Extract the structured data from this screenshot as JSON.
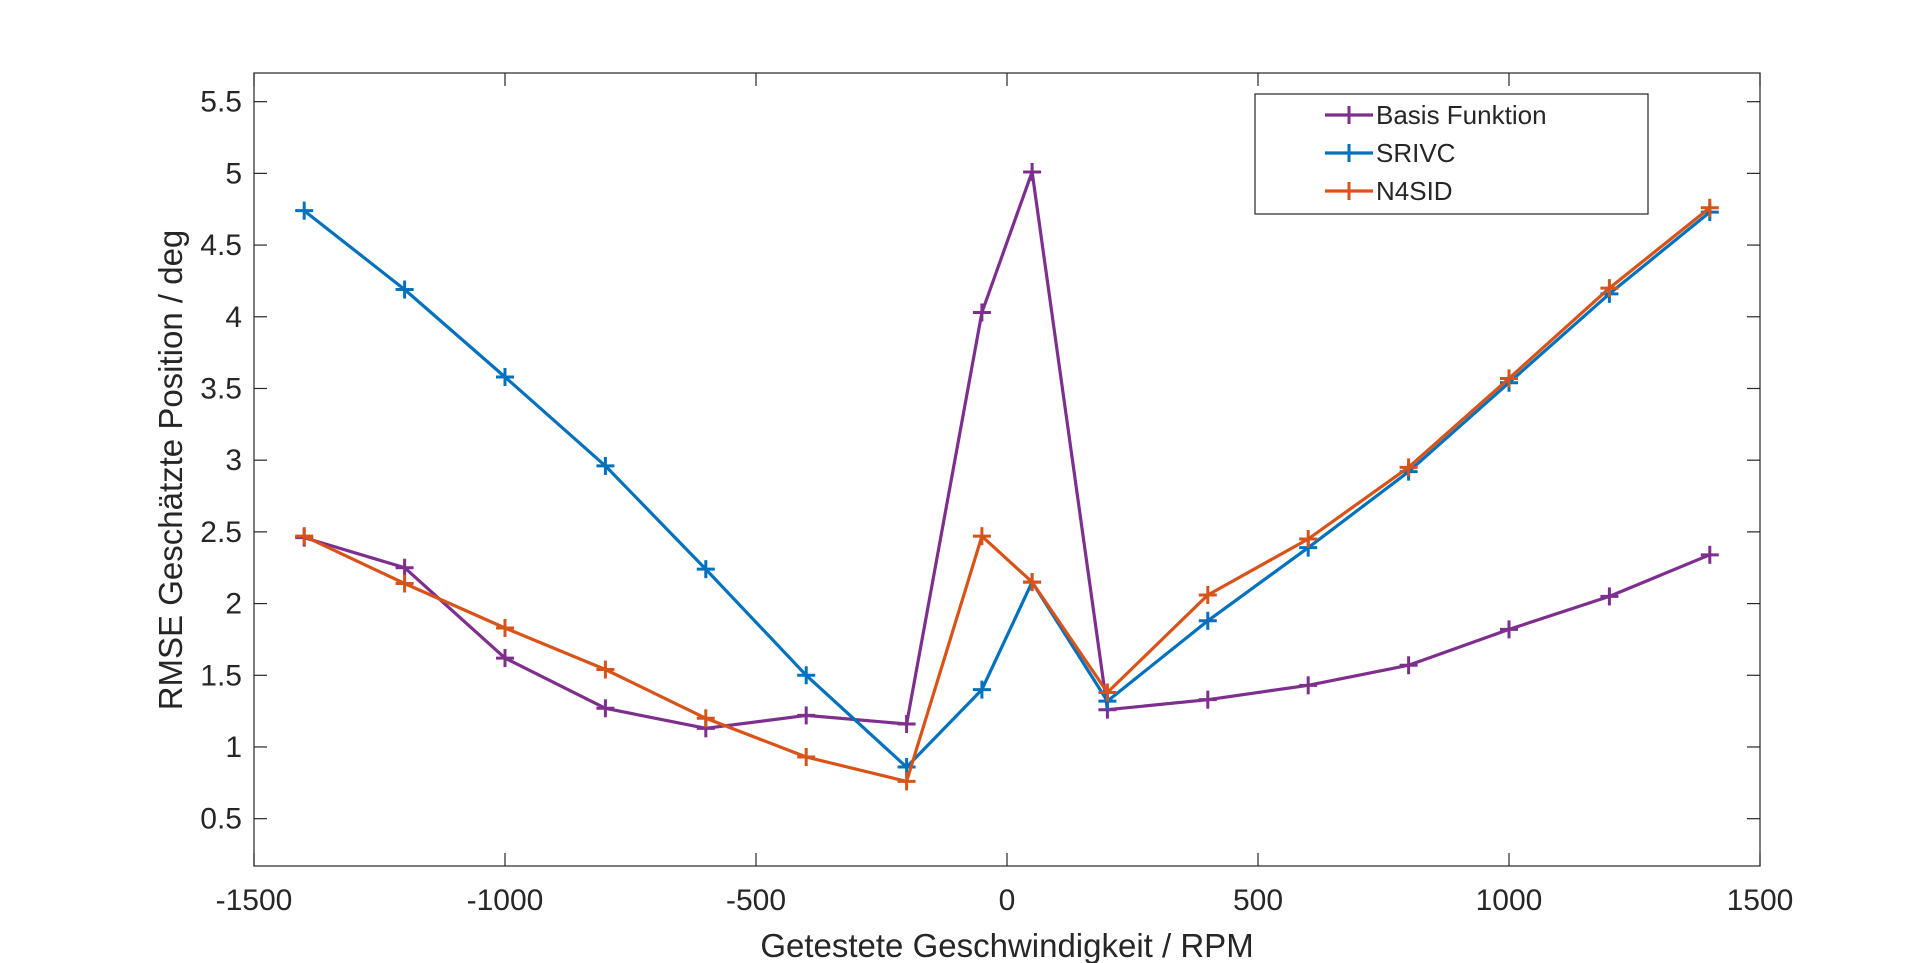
{
  "chart_data": {
    "type": "line",
    "title": "",
    "xlabel": "Getestete Geschwindigkeit / RPM",
    "ylabel": "RMSE Geschätzte Position / deg",
    "xlim": [
      -1500,
      1500
    ],
    "ylim": [
      0.17,
      5.7
    ],
    "xticks": [
      -1500,
      -1000,
      -500,
      0,
      500,
      1000,
      1500
    ],
    "yticks": [
      0.5,
      1,
      1.5,
      2,
      2.5,
      3,
      3.5,
      4,
      4.5,
      5,
      5.5
    ],
    "xtick_labels": [
      "-1500",
      "-1000",
      "-500",
      "0",
      "500",
      "1000",
      "1500"
    ],
    "ytick_labels": [
      "0.5",
      "1",
      "1.5",
      "2",
      "2.5",
      "3",
      "3.5",
      "4",
      "4.5",
      "5",
      "5.5"
    ],
    "grid": false,
    "legend_position": "top-right",
    "marker": "plus",
    "series": [
      {
        "name": "Basis Funktion",
        "color": "#7E2F8E",
        "x": [
          -1400,
          -1200,
          -1000,
          -800,
          -600,
          -400,
          -200,
          -50,
          50,
          200,
          400,
          600,
          800,
          1000,
          1200,
          1400
        ],
        "y": [
          2.46,
          2.25,
          1.62,
          1.27,
          1.13,
          1.22,
          1.16,
          4.03,
          5.01,
          1.26,
          1.33,
          1.43,
          1.57,
          1.82,
          2.05,
          2.34
        ]
      },
      {
        "name": "SRIVC",
        "color": "#0072BD",
        "x": [
          -1400,
          -1200,
          -1000,
          -800,
          -600,
          -400,
          -200,
          -50,
          50,
          200,
          400,
          600,
          800,
          1000,
          1200,
          1400
        ],
        "y": [
          4.74,
          4.19,
          3.58,
          2.96,
          2.24,
          1.5,
          0.86,
          1.4,
          2.15,
          1.32,
          1.88,
          2.39,
          2.92,
          3.54,
          4.16,
          4.73
        ]
      },
      {
        "name": "N4SID",
        "color": "#D95319",
        "x": [
          -1400,
          -1200,
          -1000,
          -800,
          -600,
          -400,
          -200,
          -50,
          50,
          200,
          400,
          600,
          800,
          1000,
          1200,
          1400
        ],
        "y": [
          2.47,
          2.14,
          1.83,
          1.54,
          1.2,
          0.93,
          0.76,
          2.47,
          2.15,
          1.38,
          2.06,
          2.45,
          2.95,
          3.57,
          4.2,
          4.76
        ]
      }
    ]
  }
}
